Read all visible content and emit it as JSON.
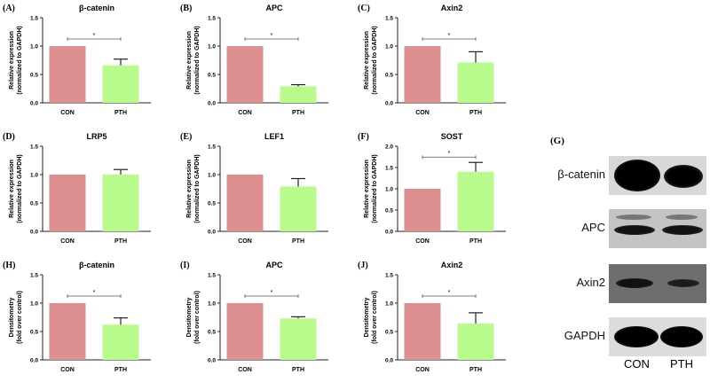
{
  "colors": {
    "con": "#de8f8f",
    "pth": "#b8fa8c",
    "axis": "#222222"
  },
  "chart_data": [
    {
      "panel": "(A)",
      "type": "bar",
      "title": "β-catenin",
      "ylabel": [
        "Relative expression",
        "(normalized to GAPDH)"
      ],
      "categories": [
        "CON",
        "PTH"
      ],
      "values": [
        1.0,
        0.66
      ],
      "errors": [
        0,
        0.11
      ],
      "ylim": [
        0,
        1.5
      ],
      "yticks": [
        "0.0",
        "0.5",
        "1.0",
        "1.5"
      ],
      "significance": "*"
    },
    {
      "panel": "(B)",
      "type": "bar",
      "title": "APC",
      "ylabel": [
        "Relative expression",
        "(normalized to GAPDH)"
      ],
      "categories": [
        "CON",
        "PTH"
      ],
      "values": [
        1.0,
        0.29
      ],
      "errors": [
        0,
        0.03
      ],
      "ylim": [
        0,
        1.5
      ],
      "yticks": [
        "0.0",
        "0.5",
        "1.0",
        "1.5"
      ],
      "significance": "*"
    },
    {
      "panel": "(C)",
      "type": "bar",
      "title": "Axin2",
      "ylabel": [
        "Relative expression",
        "(normalized to GAPDH)"
      ],
      "categories": [
        "CON",
        "PTH"
      ],
      "values": [
        1.0,
        0.71
      ],
      "errors": [
        0,
        0.19
      ],
      "ylim": [
        0,
        1.5
      ],
      "yticks": [
        "0.0",
        "0.5",
        "1.0",
        "1.5"
      ],
      "significance": "*"
    },
    {
      "panel": "(D)",
      "type": "bar",
      "title": "LRP5",
      "ylabel": [
        "Relative expression",
        "(normalized to GAPDH)"
      ],
      "categories": [
        "CON",
        "PTH"
      ],
      "values": [
        1.0,
        1.0
      ],
      "errors": [
        0,
        0.09
      ],
      "ylim": [
        0,
        1.5
      ],
      "yticks": [
        "0.0",
        "0.5",
        "1.0",
        "1.5"
      ],
      "significance": ""
    },
    {
      "panel": "(E)",
      "type": "bar",
      "title": "LEF1",
      "ylabel": [
        "Relative expression",
        "(normalized to GAPDH)"
      ],
      "categories": [
        "CON",
        "PTH"
      ],
      "values": [
        1.0,
        0.79
      ],
      "errors": [
        0,
        0.14
      ],
      "ylim": [
        0,
        1.5
      ],
      "yticks": [
        "0.0",
        "0.5",
        "1.0",
        "1.5"
      ],
      "significance": ""
    },
    {
      "panel": "(F)",
      "type": "bar",
      "title": "SOST",
      "ylabel": [
        "Relative expression",
        "(normalized to GAPDH)"
      ],
      "categories": [
        "CON",
        "PTH"
      ],
      "values": [
        1.0,
        1.4
      ],
      "errors": [
        0,
        0.22
      ],
      "ylim": [
        0,
        2.0
      ],
      "yticks": [
        "0.0",
        "0.5",
        "1.0",
        "1.5",
        "2.0"
      ],
      "significance": "*"
    },
    {
      "panel": "(H)",
      "type": "bar",
      "title": "β-catenin",
      "ylabel": [
        "Densitometry",
        "(fold over control)"
      ],
      "categories": [
        "CON",
        "PTH"
      ],
      "values": [
        1.0,
        0.62
      ],
      "errors": [
        0,
        0.12
      ],
      "ylim": [
        0,
        1.5
      ],
      "yticks": [
        "0.0",
        "0.5",
        "1.0",
        "1.5"
      ],
      "significance": "*"
    },
    {
      "panel": "(I)",
      "type": "bar",
      "title": "APC",
      "ylabel": [
        "Densitometry",
        "(fold over control)"
      ],
      "categories": [
        "CON",
        "PTH"
      ],
      "values": [
        1.0,
        0.73
      ],
      "errors": [
        0,
        0.03
      ],
      "ylim": [
        0,
        1.5
      ],
      "yticks": [
        "0.0",
        "0.5",
        "1.0",
        "1.5"
      ],
      "significance": "*"
    },
    {
      "panel": "(J)",
      "type": "bar",
      "title": "Axin2",
      "ylabel": [
        "Densitometry",
        "(fold over control)"
      ],
      "categories": [
        "CON",
        "PTH"
      ],
      "values": [
        1.0,
        0.64
      ],
      "errors": [
        0,
        0.19
      ],
      "ylim": [
        0,
        1.5
      ],
      "yticks": [
        "0.0",
        "0.5",
        "1.0",
        "1.5"
      ],
      "significance": "*"
    }
  ],
  "blot": {
    "panel": "(G)",
    "rows": [
      "β-catenin",
      "APC",
      "Axin2",
      "GAPDH"
    ],
    "lanes": [
      "CON",
      "PTH"
    ]
  }
}
